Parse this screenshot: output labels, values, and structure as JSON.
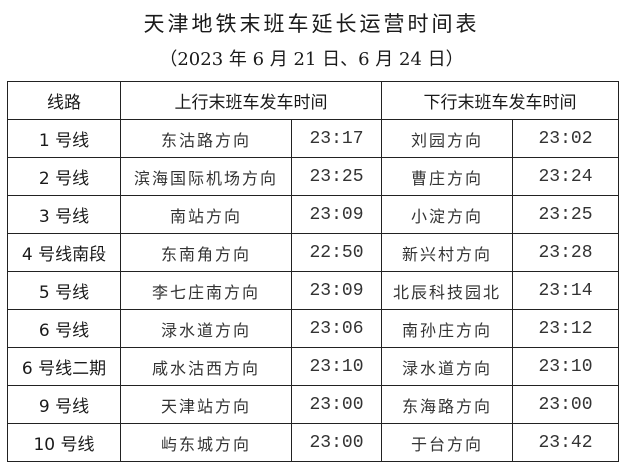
{
  "title": "天津地铁末班车延长运营时间表",
  "subtitle": "（2023 年 6 月 21 日、6 月 24 日）",
  "headers": {
    "line": "线路",
    "up": "上行末班车发车时间",
    "down": "下行末班车发车时间"
  },
  "rows": [
    {
      "line": "1 号线",
      "up_dir": "东沽路方向",
      "up_time": "23:17",
      "down_dir": "刘园方向",
      "down_time": "23:02"
    },
    {
      "line": "2 号线",
      "up_dir": "滨海国际机场方向",
      "up_time": "23:25",
      "down_dir": "曹庄方向",
      "down_time": "23:24"
    },
    {
      "line": "3 号线",
      "up_dir": "南站方向",
      "up_time": "23:09",
      "down_dir": "小淀方向",
      "down_time": "23:25"
    },
    {
      "line": "4 号线南段",
      "up_dir": "东南角方向",
      "up_time": "22:50",
      "down_dir": "新兴村方向",
      "down_time": "23:28"
    },
    {
      "line": "5 号线",
      "up_dir": "李七庄南方向",
      "up_time": "23:09",
      "down_dir": "北辰科技园北",
      "down_time": "23:14"
    },
    {
      "line": "6 号线",
      "up_dir": "渌水道方向",
      "up_time": "23:06",
      "down_dir": "南孙庄方向",
      "down_time": "23:12"
    },
    {
      "line": "6 号线二期",
      "up_dir": "咸水沽西方向",
      "up_time": "23:10",
      "down_dir": "渌水道方向",
      "down_time": "23:10"
    },
    {
      "line": "9 号线",
      "up_dir": "天津站方向",
      "up_time": "23:00",
      "down_dir": "东海路方向",
      "down_time": "23:00"
    },
    {
      "line": "10 号线",
      "up_dir": "屿东城方向",
      "up_time": "23:00",
      "down_dir": "于台方向",
      "down_time": "23:42"
    }
  ]
}
